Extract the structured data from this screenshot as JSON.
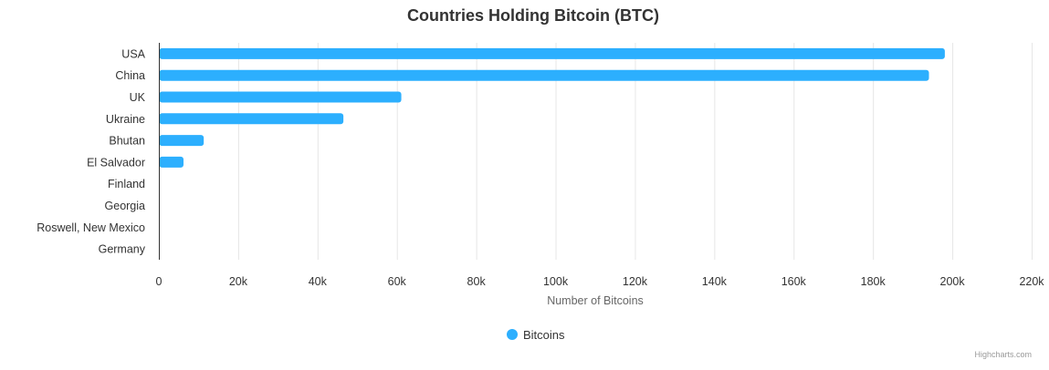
{
  "chart_data": {
    "type": "bar",
    "orientation": "horizontal",
    "title": "Countries Holding Bitcoin (BTC)",
    "categories": [
      "USA",
      "China",
      "UK",
      "Ukraine",
      "Bhutan",
      "El Salvador",
      "Finland",
      "Georgia",
      "Roswell, New Mexico",
      "Germany"
    ],
    "series": [
      {
        "name": "Bitcoins",
        "color": "#2caffe",
        "values": [
          198000,
          194000,
          61000,
          46400,
          11200,
          6100,
          0,
          0,
          0,
          0
        ]
      }
    ],
    "xlabel": "Number of Bitcoins",
    "ylabel": "",
    "xlim": [
      0,
      220000
    ],
    "x_ticks": [
      0,
      20000,
      40000,
      60000,
      80000,
      100000,
      120000,
      140000,
      160000,
      180000,
      200000,
      220000
    ],
    "x_tick_labels": [
      "0",
      "20k",
      "40k",
      "60k",
      "80k",
      "100k",
      "120k",
      "140k",
      "160k",
      "180k",
      "200k",
      "220k"
    ],
    "grid": "vertical",
    "legend": "bottom-center"
  },
  "credits": "Highcharts.com"
}
